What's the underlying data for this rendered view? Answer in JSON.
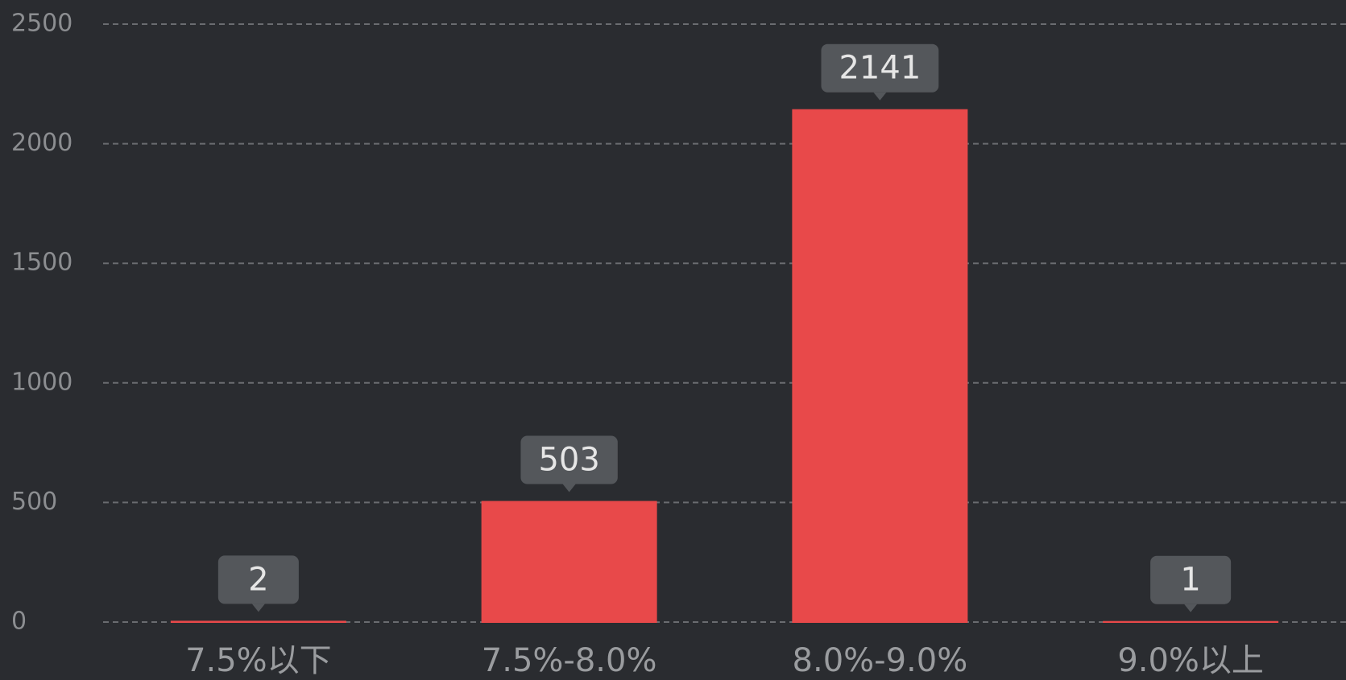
{
  "chart_data": {
    "type": "bar",
    "categories": [
      "7.5%以下",
      "7.5%-8.0%",
      "8.0%-9.0%",
      "9.0%以上"
    ],
    "values": [
      2,
      503,
      2141,
      1
    ],
    "color": "#e8494a",
    "ylim": [
      0,
      2500
    ],
    "yticks": [
      0,
      500,
      1000,
      1500,
      2000,
      2500
    ],
    "grid": true
  }
}
